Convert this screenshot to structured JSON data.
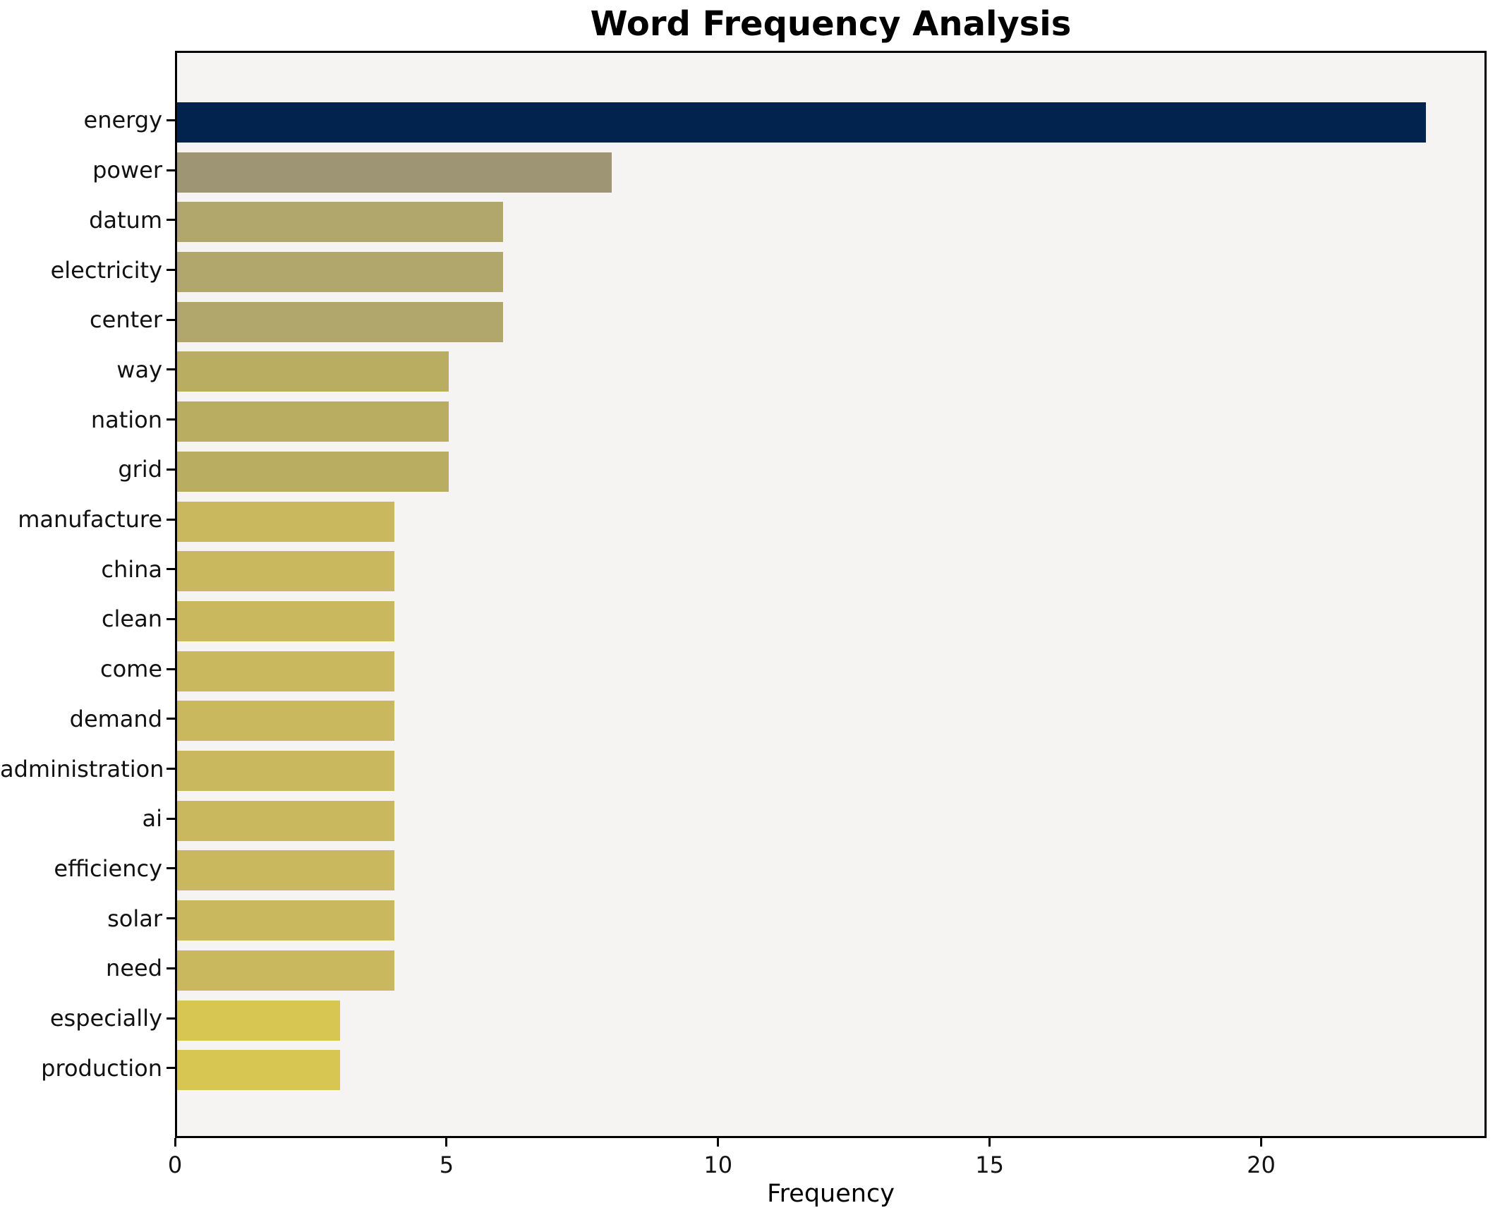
{
  "chart_data": {
    "type": "bar",
    "orientation": "horizontal",
    "title": "Word Frequency Analysis",
    "xlabel": "Frequency",
    "ylabel": "",
    "categories": [
      "energy",
      "power",
      "datum",
      "electricity",
      "center",
      "way",
      "nation",
      "grid",
      "manufacture",
      "china",
      "clean",
      "come",
      "demand",
      "administration",
      "ai",
      "efficiency",
      "solar",
      "need",
      "especially",
      "production"
    ],
    "values": [
      23,
      8,
      6,
      6,
      6,
      5,
      5,
      5,
      4,
      4,
      4,
      4,
      4,
      4,
      4,
      4,
      4,
      4,
      3,
      3
    ],
    "bar_colors": [
      "#03234f",
      "#9d9574",
      "#b1a66c",
      "#b1a66c",
      "#b1a66c",
      "#b9ad62",
      "#b9ad62",
      "#b9ad62",
      "#c9b85e",
      "#c9b85e",
      "#c9b85e",
      "#c9b85e",
      "#c9b85e",
      "#c9b85e",
      "#c9b85e",
      "#c9b85e",
      "#c9b85e",
      "#c9b85e",
      "#d8c653",
      "#d8c653"
    ],
    "xlim": [
      0,
      24.15
    ],
    "xticks": [
      0,
      5,
      10,
      15,
      20
    ],
    "grid": false,
    "legend_position": "none",
    "plot_background": "#f5f4f2",
    "figure_background": "#ffffff",
    "spine_color": "#000000"
  }
}
